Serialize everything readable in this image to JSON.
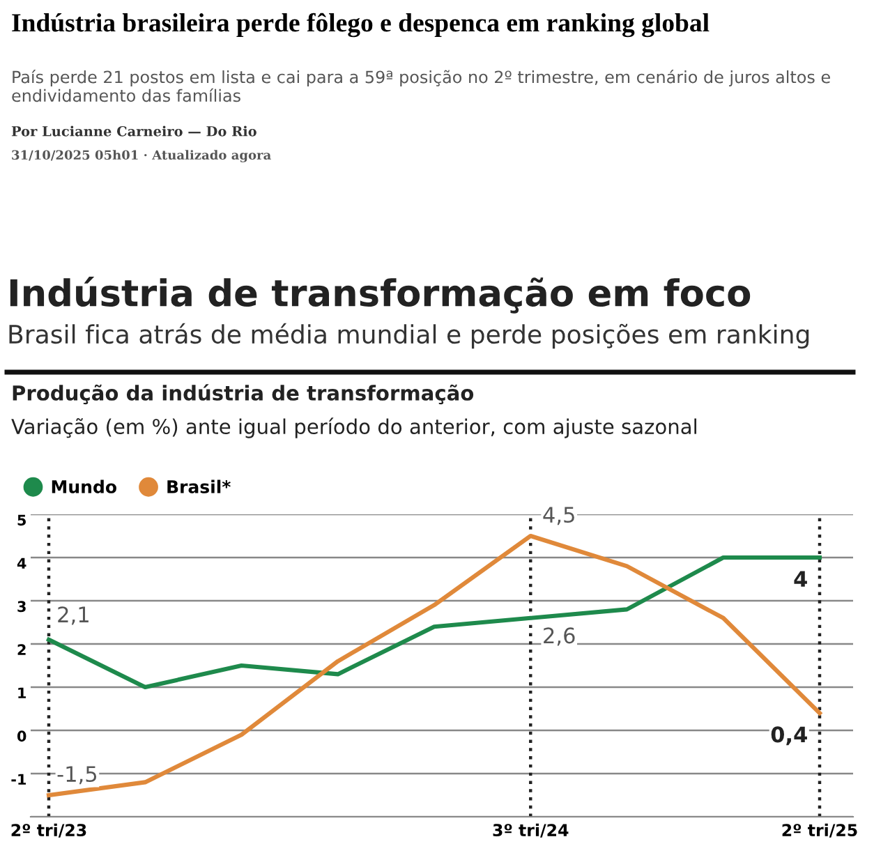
{
  "chart_data": {
    "type": "line",
    "title": "Indústria brasileira perde fôlego e despenca em ranking global",
    "subtitle": "País perde 21 postos em lista e cai para a 59ª posição no 2º trimestre, em cenário de juros altos e endividamento das famílias",
    "annotations": [
      "Por Lucianne Carneiro — Do Rio",
      "31/10/2025 05h01 · Atualizado agora",
      "Indústria de transformação em foco",
      "Brasil fica atrás de média mundial e perde posições em ranking",
      "Produção da indústria de transformação",
      "Variação (em %) ante igual período do anterior, com ajuste sazonal",
      {
        "text": "2,1",
        "x": "2º tri/23",
        "y": 2.1
      },
      {
        "text": "-1,5",
        "x": "2º tri/23",
        "y": -1.5
      },
      {
        "text": "4,5",
        "x": "3º tri/24",
        "y": 4.5
      },
      {
        "text": "2,6",
        "x": "3º tri/24",
        "y": 2.6
      },
      {
        "text": "4",
        "x": "2º tri/25",
        "y": 4
      },
      {
        "text": "0,4",
        "x": "2º tri/25",
        "y": 0.4
      }
    ],
    "categories": [
      "2º tri/23",
      null,
      null,
      null,
      null,
      "3º tri/24",
      null,
      null,
      "2º tri/25"
    ],
    "series": [
      {
        "name": "Mundo",
        "color": "#1e8a4c",
        "values": [
          2.1,
          1.0,
          1.5,
          1.3,
          2.4,
          2.6,
          2.8,
          4,
          4
        ]
      },
      {
        "name": "Brasil*",
        "color": "#e0893a",
        "values": [
          -1.5,
          -1.2,
          -0.1,
          1.6,
          2.9,
          4.5,
          3.8,
          2.6,
          0.4
        ]
      }
    ],
    "ylim": [
      -2,
      5
    ],
    "yticks": [
      {
        "value": -2,
        "label": null
      },
      -1,
      0,
      1,
      2,
      3,
      4,
      5
    ],
    "grid": "y",
    "legend": "top left",
    "marker": "none",
    "line_style": "solid",
    "ref_lines": [
      {
        "axis": "x",
        "value": "2º tri/23",
        "color": "#222222",
        "line_style": "dotted"
      },
      {
        "axis": "x",
        "value": "3º tri/24",
        "color": "#222222",
        "line_style": "dotted"
      },
      {
        "axis": "x",
        "value": "2º tri/25",
        "color": "#222222",
        "line_style": "dotted"
      }
    ]
  }
}
